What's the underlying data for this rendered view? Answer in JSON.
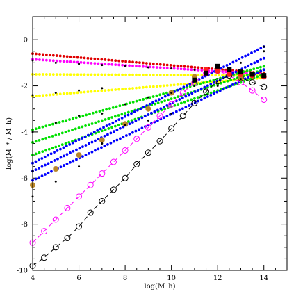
{
  "chart_data": {
    "type": "scatter",
    "xlabel": "log(M_h)",
    "ylabel": "log(M_* / M_h)",
    "xlim": [
      4,
      15
    ],
    "ylim": [
      -10,
      1
    ],
    "xticks": [
      4,
      6,
      8,
      10,
      12,
      14
    ],
    "yticks": [
      -10,
      -8,
      -6,
      -4,
      -2,
      0
    ],
    "series": [
      {
        "style": "dotted",
        "color": "#e00000",
        "x": [
          4,
          14
        ],
        "y": [
          -0.6,
          -1.45
        ]
      },
      {
        "style": "dotted",
        "color": "#ff00ff",
        "x": [
          4,
          14
        ],
        "y": [
          -0.85,
          -1.5
        ]
      },
      {
        "style": "dotted",
        "color": "#ffff00",
        "x": [
          4,
          14
        ],
        "y": [
          -1.5,
          -1.55
        ]
      },
      {
        "style": "dotted",
        "color": "#ffff00",
        "x": [
          4,
          14
        ],
        "y": [
          -2.45,
          -1.65
        ]
      },
      {
        "style": "dotted",
        "color": "#00e000",
        "x": [
          4,
          14
        ],
        "y": [
          -3.9,
          -1.15
        ]
      },
      {
        "style": "dotted",
        "color": "#00e000",
        "x": [
          4,
          14
        ],
        "y": [
          -4.45,
          -1.3
        ]
      },
      {
        "style": "dotted",
        "color": "#00e000",
        "x": [
          4,
          14
        ],
        "y": [
          -5.0,
          -1.5
        ]
      },
      {
        "style": "dotted",
        "color": "#0000ff",
        "x": [
          4,
          14
        ],
        "y": [
          -5.35,
          -0.3
        ]
      },
      {
        "style": "dotted",
        "color": "#0000ff",
        "x": [
          4,
          14
        ],
        "y": [
          -5.7,
          -0.8
        ]
      },
      {
        "style": "dotted",
        "color": "#0000ff",
        "x": [
          4,
          14
        ],
        "y": [
          -6.1,
          -1.3
        ]
      },
      {
        "style": "dashed-open-circles",
        "color": "#ff00ff",
        "x": [
          4,
          4.5,
          5,
          5.5,
          6,
          6.5,
          7,
          7.5,
          8,
          8.5,
          9,
          9.5,
          10,
          10.5,
          11,
          11.5,
          12,
          12.5,
          13,
          13.5,
          14
        ],
        "y": [
          -8.8,
          -8.3,
          -7.8,
          -7.3,
          -6.8,
          -6.3,
          -5.8,
          -5.3,
          -4.8,
          -4.3,
          -3.8,
          -3.3,
          -2.8,
          -2.3,
          -1.85,
          -1.45,
          -1.35,
          -1.55,
          -1.85,
          -2.2,
          -2.6
        ]
      },
      {
        "style": "dashed-open-circles",
        "color": "#000000",
        "x": [
          4,
          4.5,
          5,
          5.5,
          6,
          6.5,
          7,
          7.5,
          8,
          8.5,
          9,
          9.5,
          10,
          10.5,
          11,
          11.5,
          12,
          12.5,
          13,
          13.5,
          14
        ],
        "y": [
          -9.8,
          -9.45,
          -9.0,
          -8.6,
          -8.1,
          -7.5,
          -7.0,
          -6.5,
          -6.0,
          -5.4,
          -4.9,
          -4.4,
          -3.85,
          -3.3,
          -2.75,
          -2.25,
          -1.8,
          -1.55,
          -1.65,
          -1.85,
          -2.05
        ]
      },
      {
        "style": "filled-circles",
        "color": "#b8862a",
        "x": [
          4,
          5,
          6,
          7,
          8,
          9,
          10,
          11,
          12,
          13
        ],
        "y": [
          -6.3,
          -5.6,
          -5.0,
          -4.35,
          -3.65,
          -3.0,
          -2.3,
          -1.6,
          -1.35,
          -1.65
        ]
      },
      {
        "style": "filled-circles",
        "color": "#ff2020",
        "x": [
          11.5,
          12,
          12.5,
          13,
          13.5,
          14
        ],
        "y": [
          -1.3,
          -1.35,
          -1.5,
          -1.5,
          -1.55,
          -1.6
        ]
      },
      {
        "style": "filled-squares",
        "color": "#000000",
        "x": [
          11,
          11.5,
          12,
          12.5,
          13,
          13.5,
          14
        ],
        "y": [
          -1.75,
          -1.45,
          -1.15,
          -1.3,
          -1.4,
          -1.5,
          -1.55
        ]
      },
      {
        "style": "small-dots",
        "color": "#000000",
        "x": [
          4,
          4,
          4,
          4,
          4,
          5,
          5,
          5,
          5,
          6,
          6,
          6,
          6,
          7,
          7,
          7,
          7,
          8,
          8,
          8,
          9,
          9,
          9,
          10,
          10,
          10,
          11,
          11,
          12,
          12,
          13,
          13,
          14,
          14
        ],
        "y": [
          -0.9,
          -2.4,
          -4.0,
          -5.7,
          -6.8,
          -1.0,
          -2.3,
          -3.6,
          -6.15,
          -1.05,
          -2.2,
          -3.3,
          -5.5,
          -1.1,
          -2.1,
          -3.2,
          -4.5,
          -1.15,
          -2.8,
          -3.7,
          -1.2,
          -2.5,
          -3.5,
          -1.25,
          -2.3,
          -3.2,
          -1.3,
          -2.0,
          -1.2,
          -2.0,
          -1.0,
          -1.7,
          -0.3,
          -0.5
        ]
      }
    ]
  }
}
